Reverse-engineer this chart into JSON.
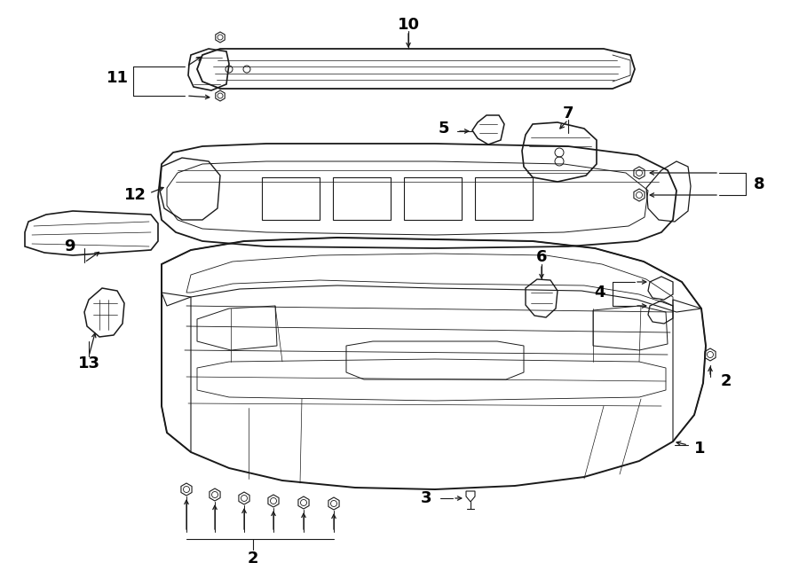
{
  "bg_color": "#ffffff",
  "line_color": "#1a1a1a",
  "label_color": "#000000",
  "figsize": [
    9.0,
    6.61
  ],
  "dpi": 100
}
